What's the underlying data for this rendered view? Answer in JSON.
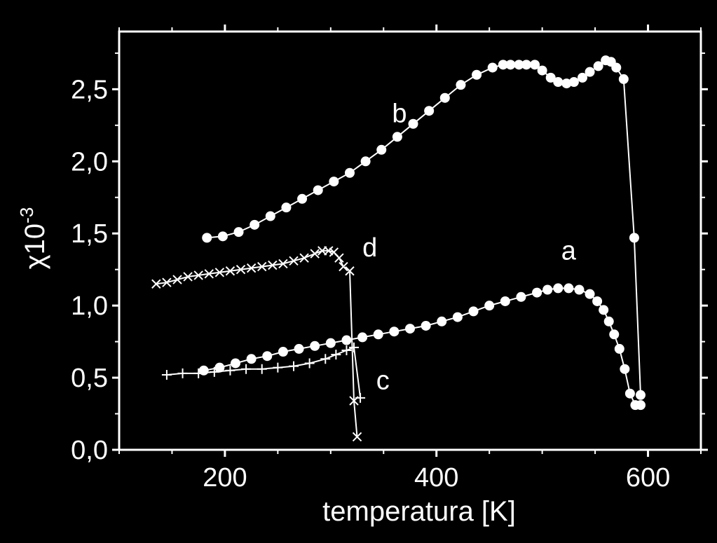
{
  "chart_data": {
    "type": "scatter",
    "xlabel": "temperatura [K]",
    "ylabel": "χ10",
    "ylabel_exponent": "-3",
    "xlim": [
      100,
      650
    ],
    "ylim": [
      0,
      2.9
    ],
    "x_ticks": [
      200,
      400,
      600
    ],
    "x_tick_labels": [
      "200",
      "400",
      "600"
    ],
    "y_ticks": [
      0,
      0.5,
      1.0,
      1.5,
      2.0,
      2.5
    ],
    "y_tick_labels": [
      "0,0",
      "0,5",
      "1,0",
      "1,5",
      "2,0",
      "2,5"
    ],
    "grid": false,
    "colors": {
      "background": "#000000",
      "foreground": "#ffffff"
    },
    "series": [
      {
        "name": "a",
        "marker": "circle",
        "x": [
          180,
          195,
          210,
          225,
          240,
          255,
          270,
          285,
          300,
          315,
          330,
          345,
          360,
          375,
          390,
          405,
          420,
          435,
          450,
          465,
          480,
          495,
          505,
          515,
          525,
          535,
          545,
          552,
          558,
          563,
          568,
          573,
          578,
          583,
          588,
          593
        ],
        "y": [
          0.55,
          0.57,
          0.6,
          0.63,
          0.65,
          0.68,
          0.7,
          0.72,
          0.74,
          0.76,
          0.78,
          0.8,
          0.82,
          0.84,
          0.86,
          0.89,
          0.92,
          0.96,
          1.0,
          1.03,
          1.06,
          1.09,
          1.11,
          1.12,
          1.12,
          1.11,
          1.08,
          1.03,
          0.97,
          0.89,
          0.8,
          0.7,
          0.56,
          0.39,
          0.31,
          0.31
        ]
      },
      {
        "name": "b",
        "marker": "circle",
        "x": [
          183,
          198,
          213,
          228,
          243,
          258,
          273,
          288,
          303,
          318,
          333,
          348,
          363,
          378,
          393,
          408,
          423,
          438,
          453,
          463,
          470,
          478,
          485,
          493,
          500,
          508,
          515,
          523,
          530,
          538,
          545,
          553,
          560,
          565,
          570,
          577,
          587,
          593
        ],
        "y": [
          1.47,
          1.48,
          1.51,
          1.56,
          1.62,
          1.68,
          1.74,
          1.8,
          1.86,
          1.92,
          2.0,
          2.08,
          2.17,
          2.26,
          2.35,
          2.44,
          2.53,
          2.6,
          2.65,
          2.67,
          2.67,
          2.67,
          2.67,
          2.67,
          2.63,
          2.58,
          2.55,
          2.54,
          2.55,
          2.58,
          2.62,
          2.66,
          2.7,
          2.69,
          2.65,
          2.57,
          1.47,
          0.38
        ]
      },
      {
        "name": "c",
        "marker": "plus",
        "x": [
          145,
          160,
          175,
          190,
          205,
          220,
          235,
          250,
          265,
          280,
          295,
          305,
          315,
          322,
          328
        ],
        "y": [
          0.52,
          0.53,
          0.53,
          0.54,
          0.55,
          0.56,
          0.56,
          0.57,
          0.58,
          0.6,
          0.63,
          0.66,
          0.69,
          0.71,
          0.36
        ]
      },
      {
        "name": "d",
        "marker": "cross",
        "x": [
          135,
          145,
          155,
          165,
          175,
          185,
          195,
          205,
          215,
          225,
          235,
          245,
          255,
          265,
          275,
          285,
          292,
          298,
          303,
          308,
          312,
          318,
          322,
          325
        ],
        "y": [
          1.15,
          1.16,
          1.18,
          1.2,
          1.21,
          1.22,
          1.23,
          1.24,
          1.25,
          1.26,
          1.27,
          1.28,
          1.29,
          1.31,
          1.33,
          1.36,
          1.38,
          1.38,
          1.37,
          1.33,
          1.27,
          1.24,
          0.34,
          0.09
        ]
      }
    ],
    "annotations": [
      {
        "text": "a",
        "series": "a",
        "x": 518,
        "y": 1.32
      },
      {
        "text": "b",
        "series": "b",
        "x": 358,
        "y": 2.27
      },
      {
        "text": "c",
        "series": "c",
        "x": 343,
        "y": 0.42
      },
      {
        "text": "d",
        "series": "d",
        "x": 330,
        "y": 1.34
      }
    ]
  }
}
